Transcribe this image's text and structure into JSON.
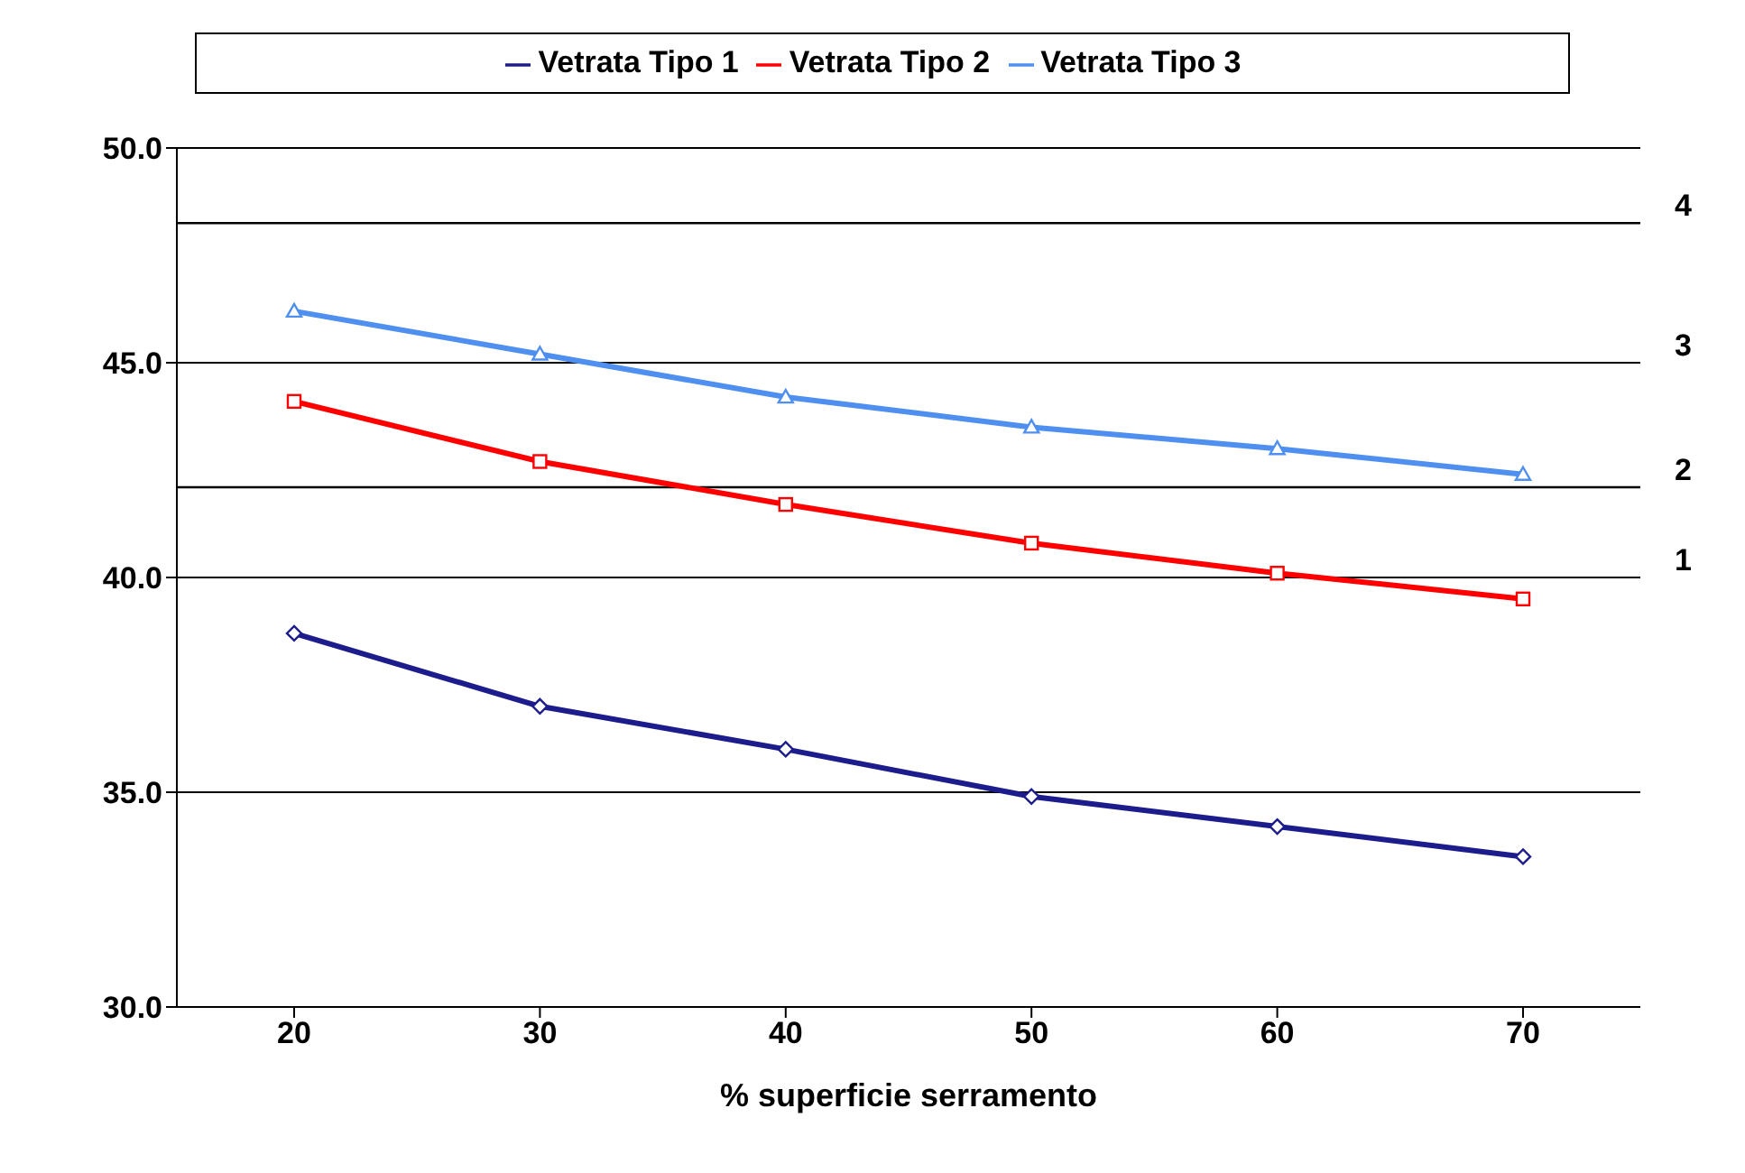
{
  "chart_data": {
    "type": "line",
    "xlabel": "% superficie serramento",
    "categories": [
      "20",
      "30",
      "40",
      "50",
      "60",
      "70"
    ],
    "series": [
      {
        "name": "Vetrata Tipo 1",
        "color": "#1c1c8c",
        "marker": "diamond",
        "values": [
          38.7,
          37.0,
          36.0,
          34.9,
          34.2,
          33.5
        ]
      },
      {
        "name": "Vetrata Tipo 2",
        "color": "#ff0000",
        "marker": "square",
        "values": [
          44.1,
          42.7,
          41.7,
          40.8,
          40.1,
          39.5
        ]
      },
      {
        "name": "Vetrata Tipo 3",
        "color": "#4f8ff0",
        "marker": "triangle",
        "values": [
          46.2,
          45.2,
          44.2,
          43.5,
          43.0,
          42.4
        ]
      }
    ],
    "ylim": [
      30,
      50
    ],
    "yticks": [
      {
        "value": 30,
        "label": "30.0"
      },
      {
        "value": 35,
        "label": "35.0"
      },
      {
        "value": 40,
        "label": "40.0"
      },
      {
        "value": 45,
        "label": "45.0"
      },
      {
        "value": 50,
        "label": "50.0"
      }
    ],
    "grid": "y",
    "legend": "top",
    "ref_lines": [
      {
        "axis": "y",
        "value": 42.1,
        "color": "#000000"
      },
      {
        "axis": "y",
        "value": 48.25,
        "color": "#000000"
      }
    ],
    "annotations": [
      "1",
      "2",
      "3",
      "4"
    ]
  }
}
